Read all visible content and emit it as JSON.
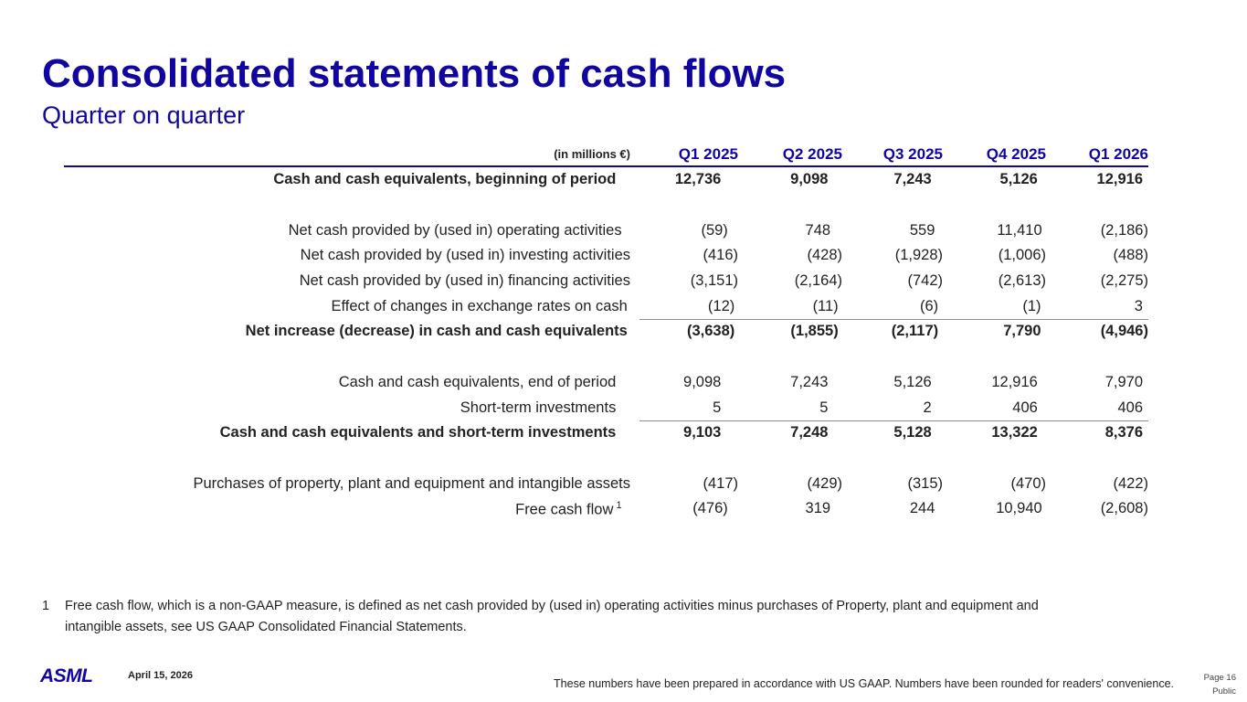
{
  "title": "Consolidated statements of cash flows",
  "subtitle": "Quarter on quarter",
  "table": {
    "unit_label": "(in millions €)",
    "columns": [
      "Q1 2025",
      "Q2 2025",
      "Q3 2025",
      "Q4 2025",
      "Q1 2026"
    ],
    "rows": [
      {
        "label": "Cash and cash equivalents, beginning of period",
        "values": [
          "12,736",
          "9,098",
          "7,243",
          "5,126",
          "12,916"
        ]
      },
      {
        "label": "Net cash provided by (used in) operating activities",
        "values": [
          "(59)",
          "748",
          "559",
          "11,410",
          "(2,186)"
        ]
      },
      {
        "label": "Net cash provided by (used in) investing activities",
        "values": [
          "(416)",
          "(428)",
          "(1,928)",
          "(1,006)",
          "(488)"
        ]
      },
      {
        "label": "Net cash provided by (used in) financing activities",
        "values": [
          "(3,151)",
          "(2,164)",
          "(742)",
          "(2,613)",
          "(2,275)"
        ]
      },
      {
        "label": "Effect of changes in exchange rates on cash",
        "values": [
          "(12)",
          "(11)",
          "(6)",
          "(1)",
          "3"
        ]
      },
      {
        "label": "Net increase (decrease) in cash and cash equivalents",
        "values": [
          "(3,638)",
          "(1,855)",
          "(2,117)",
          "7,790",
          "(4,946)"
        ]
      },
      {
        "label": "Cash and cash equivalents, end of period",
        "values": [
          "9,098",
          "7,243",
          "5,126",
          "12,916",
          "7,970"
        ]
      },
      {
        "label": "Short-term investments",
        "values": [
          "5",
          "5",
          "2",
          "406",
          "406"
        ]
      },
      {
        "label": "Cash and cash equivalents and short-term investments",
        "values": [
          "9,103",
          "7,248",
          "5,128",
          "13,322",
          "8,376"
        ]
      },
      {
        "label": "Purchases of property, plant and equipment and intangible assets",
        "values": [
          "(417)",
          "(429)",
          "(315)",
          "(470)",
          "(422)"
        ]
      },
      {
        "label": "Free cash flow",
        "sup": "1",
        "values": [
          "(476)",
          "319",
          "244",
          "10,940",
          "(2,608)"
        ]
      }
    ]
  },
  "footnote": {
    "number": "1",
    "line1": "Free cash flow, which is a non-GAAP measure, is defined as net cash provided by (used in) operating activities minus purchases of Property, plant and equipment and",
    "line2": "intangible assets, see US GAAP Consolidated Financial Statements."
  },
  "footer": {
    "logo": "ASML",
    "date": "April 15, 2026",
    "note": "These numbers have been prepared in accordance with US GAAP.  Numbers have been rounded for readers' convenience.",
    "page": "Page 16",
    "classification": "Public"
  }
}
